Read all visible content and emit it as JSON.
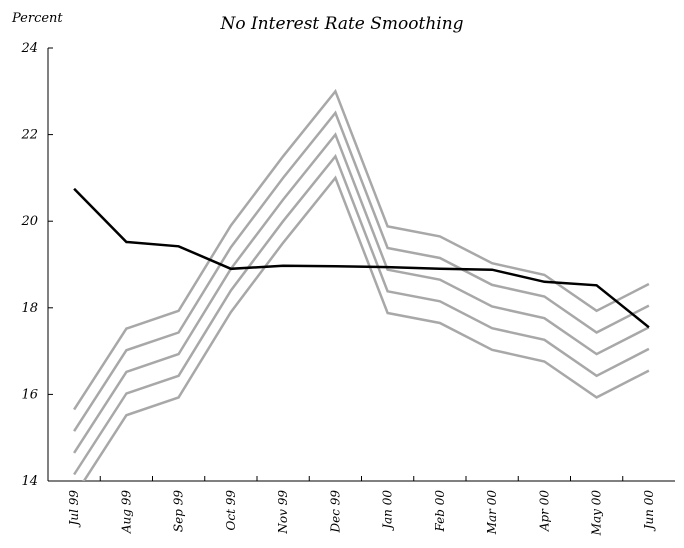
{
  "chart_data": {
    "type": "line",
    "title": "No Interest Rate Smoothing",
    "ylabel": "Percent",
    "xlabel": "",
    "ylim": [
      14,
      24
    ],
    "yticks": [
      14,
      16,
      18,
      20,
      22,
      24
    ],
    "categories": [
      "Jul 99",
      "Aug 99",
      "Sep 99",
      "Oct 99",
      "Nov 99",
      "Dec 99",
      "Jan 00",
      "Feb 00",
      "Mar 00",
      "Apr 00",
      "May 00",
      "Jun 00"
    ],
    "series": [
      {
        "color": "#000000",
        "values": [
          20.75,
          19.52,
          19.42,
          18.9,
          18.97,
          18.96,
          18.94,
          18.9,
          18.88,
          18.6,
          18.52,
          17.55
        ]
      },
      {
        "color": "#a8a8a8",
        "values": [
          15.65,
          17.52,
          17.93,
          19.9,
          21.5,
          23.0,
          19.88,
          19.65,
          19.03,
          18.76,
          17.93,
          18.55
        ]
      },
      {
        "color": "#a8a8a8",
        "values": [
          15.15,
          17.02,
          17.43,
          19.4,
          21.0,
          22.5,
          19.38,
          19.15,
          18.53,
          18.26,
          17.43,
          18.05
        ]
      },
      {
        "color": "#a8a8a8",
        "values": [
          14.65,
          16.52,
          16.93,
          18.9,
          20.5,
          22.0,
          18.88,
          18.65,
          18.03,
          17.76,
          16.93,
          17.55
        ]
      },
      {
        "color": "#a8a8a8",
        "values": [
          14.15,
          16.02,
          16.43,
          18.4,
          20.0,
          21.5,
          18.38,
          18.15,
          17.53,
          17.26,
          16.43,
          17.05
        ]
      },
      {
        "color": "#a8a8a8",
        "values": [
          13.65,
          15.52,
          15.93,
          17.9,
          19.5,
          21.0,
          17.88,
          17.65,
          17.03,
          16.76,
          15.93,
          16.55
        ]
      }
    ],
    "grid": false,
    "legend": "none"
  }
}
